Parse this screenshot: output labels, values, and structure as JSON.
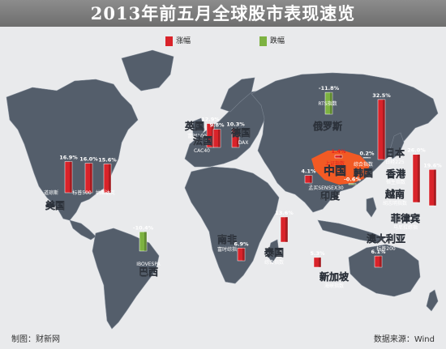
{
  "title": "2013年前五月全球股市表现速览",
  "legend": {
    "up": "涨幅",
    "down": "跌幅"
  },
  "colors": {
    "up": "#d9232a",
    "down": "#7db241",
    "ocean": "#e9eaec",
    "land": "#545e6b",
    "highlight": "#f25a24"
  },
  "chart_data": {
    "type": "bar",
    "value_unit": "%",
    "markets": [
      {
        "country": "美国",
        "index": "道琼斯",
        "value": 16.9,
        "value_label": "16.9%"
      },
      {
        "country": "美国",
        "index": "标普500",
        "value": 16.0,
        "value_label": "16.0%"
      },
      {
        "country": "美国",
        "index": "纳斯达克",
        "value": 15.6,
        "value_label": "15.6%"
      },
      {
        "country": "巴西",
        "index": "IBOVESPA",
        "value": -10.4,
        "value_label": "-10.4%"
      },
      {
        "country": "英国",
        "index": "富时100",
        "value": 12.9,
        "value_label": "12.9%"
      },
      {
        "country": "法国",
        "index": "CAC40",
        "value": 9.8,
        "value_label": "9.8%"
      },
      {
        "country": "德国",
        "index": "DAX",
        "value": 10.3,
        "value_label": "10.3%"
      },
      {
        "country": "南非",
        "index": "富时综指",
        "value": 6.9,
        "value_label": "6.9%"
      },
      {
        "country": "俄罗斯",
        "index": "RTS指数",
        "value": -11.8,
        "value_label": "-11.8%"
      },
      {
        "country": "印度",
        "index": "孟买SENSEX30",
        "value": 4.1,
        "value_label": "4.1%"
      },
      {
        "country": "中国",
        "index": "上证指数",
        "value": 1.4,
        "value_label": "1.4%"
      },
      {
        "country": "韩国",
        "index": "综合指数",
        "value": 0.2,
        "value_label": "0.2%"
      },
      {
        "country": "日本",
        "index": "日经225",
        "value": 32.5,
        "value_label": "32.5%"
      },
      {
        "country": "香港",
        "index": "恒生指数",
        "value": -0.6,
        "value_label": "-0.6%"
      },
      {
        "country": "越南",
        "index": "胡志明指数",
        "value": 26.0,
        "value_label": "26.0%"
      },
      {
        "country": "菲律宾",
        "index": "马尼拉综指",
        "value": 19.6,
        "value_label": "19.6%"
      },
      {
        "country": "泰国",
        "index": "综合指数",
        "value": 13.6,
        "value_label": "13.6%"
      },
      {
        "country": "新加坡",
        "index": "海峡指数",
        "value": 5.3,
        "value_label": "5.3%"
      },
      {
        "country": "澳大利亚",
        "index": "标普200",
        "value": 6.1,
        "value_label": "6.1%"
      }
    ]
  },
  "footer": {
    "source_left": "制图：财新网",
    "source_right": "数据来源：Wind"
  }
}
